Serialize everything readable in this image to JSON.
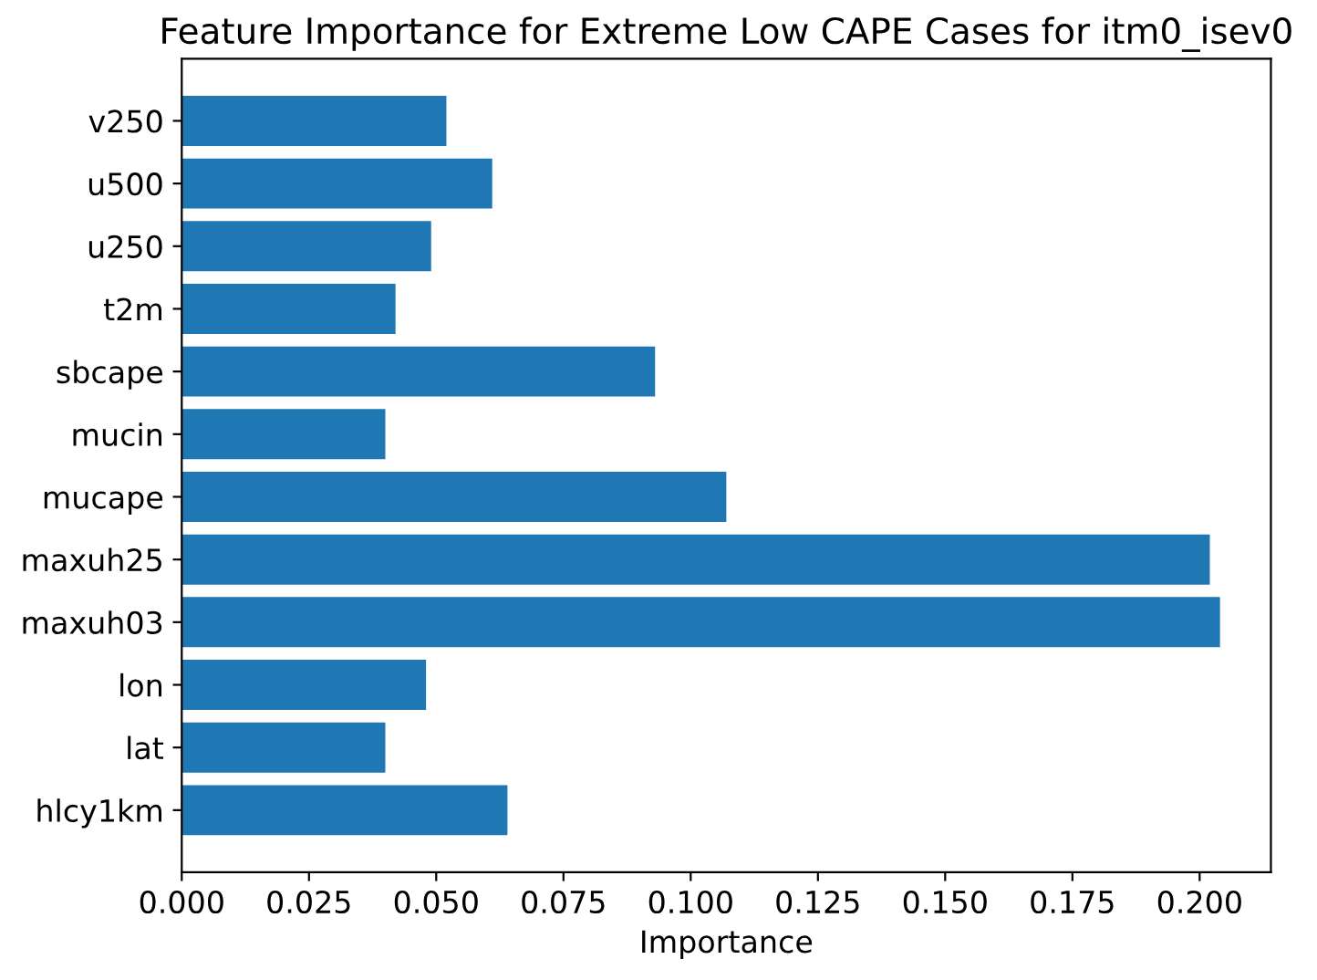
{
  "chart_data": {
    "type": "bar",
    "orientation": "horizontal",
    "title": "Feature Importance for Extreme Low CAPE Cases for itm0_isev0",
    "xlabel": "Importance",
    "categories": [
      "v250",
      "u500",
      "u250",
      "t2m",
      "sbcape",
      "mucin",
      "mucape",
      "maxuh25",
      "maxuh03",
      "lon",
      "lat",
      "hlcy1km"
    ],
    "values": [
      0.052,
      0.061,
      0.049,
      0.042,
      0.093,
      0.04,
      0.107,
      0.202,
      0.204,
      0.048,
      0.04,
      0.064
    ],
    "color": "#1f77b4",
    "xlim": [
      0,
      0.214
    ],
    "xticks": [
      {
        "value": 0,
        "label": "0.000"
      },
      {
        "value": 0.025,
        "label": "0.025"
      },
      {
        "value": 0.05,
        "label": "0.050"
      },
      {
        "value": 0.075,
        "label": "0.075"
      },
      {
        "value": 0.1,
        "label": "0.100"
      },
      {
        "value": 0.125,
        "label": "0.125"
      },
      {
        "value": 0.15,
        "label": "0.150"
      },
      {
        "value": 0.175,
        "label": "0.175"
      },
      {
        "value": 0.2,
        "label": "0.200"
      }
    ],
    "grid": false,
    "legend": false
  }
}
